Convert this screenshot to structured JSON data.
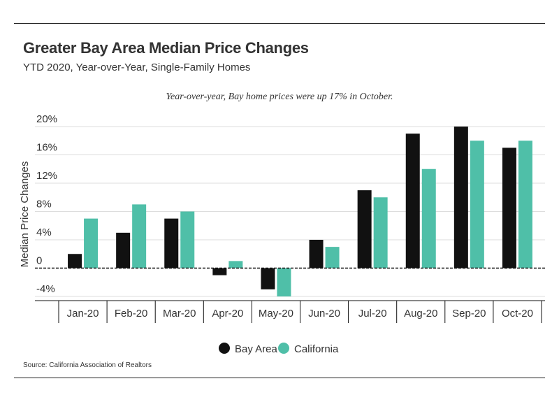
{
  "header": {
    "title": "Greater Bay Area Median Price Changes",
    "subtitle": "YTD 2020, Year-over-Year, Single-Family Homes",
    "annotation": "Year-over-year, Bay home prices were up 17% in October.",
    "source": "Source:  California Association of Realtors"
  },
  "colors": {
    "bay_area": "#111111",
    "california": "#4fbfa8",
    "grid": "#dddddd",
    "zero_line": "#111111"
  },
  "chart_data": {
    "type": "bar",
    "title": "Greater Bay Area Median Price Changes",
    "subtitle": "YTD 2020, Year-over-Year, Single-Family Homes",
    "xlabel": "",
    "ylabel": "Median Price Changes",
    "categories": [
      "Jan-20",
      "Feb-20",
      "Mar-20",
      "Apr-20",
      "May-20",
      "Jun-20",
      "Jul-20",
      "Aug-20",
      "Sep-20",
      "Oct-20"
    ],
    "series": [
      {
        "name": "Bay Area",
        "color": "#111111",
        "values": [
          2,
          5,
          7,
          -1,
          -3,
          4,
          11,
          19,
          20,
          17
        ]
      },
      {
        "name": "California",
        "color": "#4fbfa8",
        "values": [
          7,
          9,
          8,
          1,
          -4,
          3,
          10,
          14,
          18,
          18
        ]
      }
    ],
    "yticks": [
      -4,
      0,
      4,
      8,
      12,
      16,
      20
    ],
    "ytick_labels": [
      "-4%",
      "0",
      "4%",
      "8%",
      "12%",
      "16%",
      "20%"
    ],
    "ylim": [
      -4,
      20
    ],
    "grid": true,
    "legend": {
      "position": "bottom",
      "entries": [
        "Bay Area",
        "California"
      ]
    },
    "annotation": "Year-over-year, Bay home prices were up 17% in October."
  }
}
